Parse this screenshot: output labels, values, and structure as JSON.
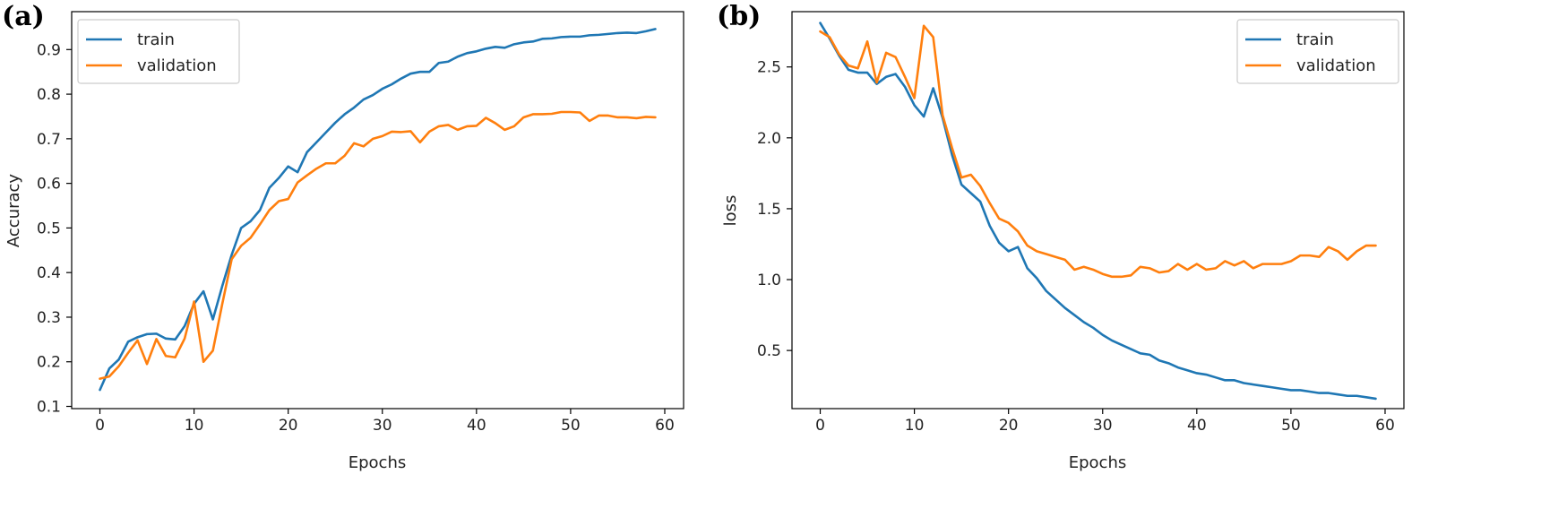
{
  "colors": {
    "train": "#1f77b4",
    "validation": "#ff7f0e"
  },
  "chart_data": [
    {
      "panel_label": "(a)",
      "type": "line",
      "xlabel": "Epochs",
      "ylabel": "Accuracy",
      "xlim": [
        -3,
        62
      ],
      "ylim": [
        0.095,
        0.985
      ],
      "xticks": [
        0,
        10,
        20,
        30,
        40,
        50,
        60
      ],
      "xtick_labels": [
        "0",
        "10",
        "20",
        "30",
        "40",
        "50",
        "60"
      ],
      "yticks": [
        0.1,
        0.2,
        0.3,
        0.4,
        0.5,
        0.6,
        0.7,
        0.8,
        0.9
      ],
      "ytick_labels": [
        "0.1",
        "0.2",
        "0.3",
        "0.4",
        "0.5",
        "0.6",
        "0.7",
        "0.8",
        "0.9"
      ],
      "legend_position": "top-left",
      "grid": false,
      "series": [
        {
          "name": "train",
          "values": [
            0.137,
            0.185,
            0.205,
            0.245,
            0.255,
            0.262,
            0.263,
            0.252,
            0.25,
            0.28,
            0.33,
            0.358,
            0.295,
            0.37,
            0.44,
            0.5,
            0.515,
            0.54,
            0.59,
            0.612,
            0.638,
            0.625,
            0.67,
            0.692,
            0.714,
            0.736,
            0.755,
            0.77,
            0.788,
            0.798,
            0.812,
            0.822,
            0.835,
            0.846,
            0.85,
            0.85,
            0.87,
            0.873,
            0.884,
            0.892,
            0.896,
            0.902,
            0.906,
            0.904,
            0.912,
            0.916,
            0.918,
            0.924,
            0.925,
            0.928,
            0.929,
            0.929,
            0.932,
            0.933,
            0.935,
            0.937,
            0.938,
            0.937,
            0.941,
            0.946
          ]
        },
        {
          "name": "validation",
          "values": [
            0.162,
            0.167,
            0.19,
            0.22,
            0.248,
            0.195,
            0.251,
            0.213,
            0.21,
            0.252,
            0.335,
            0.2,
            0.225,
            0.33,
            0.43,
            0.46,
            0.478,
            0.508,
            0.54,
            0.56,
            0.565,
            0.602,
            0.618,
            0.633,
            0.645,
            0.645,
            0.662,
            0.69,
            0.683,
            0.7,
            0.706,
            0.716,
            0.715,
            0.717,
            0.692,
            0.716,
            0.728,
            0.731,
            0.72,
            0.728,
            0.729,
            0.747,
            0.735,
            0.72,
            0.728,
            0.748,
            0.755,
            0.755,
            0.756,
            0.76,
            0.76,
            0.759,
            0.74,
            0.752,
            0.752,
            0.748,
            0.748,
            0.746,
            0.749,
            0.748
          ]
        }
      ]
    },
    {
      "panel_label": "(b)",
      "type": "line",
      "xlabel": "Epochs",
      "ylabel": "loss",
      "xlim": [
        -3,
        62
      ],
      "ylim": [
        0.09,
        2.89
      ],
      "xticks": [
        0,
        10,
        20,
        30,
        40,
        50,
        60
      ],
      "xtick_labels": [
        "0",
        "10",
        "20",
        "30",
        "40",
        "50",
        "60"
      ],
      "yticks": [
        0.5,
        1.0,
        1.5,
        2.0,
        2.5
      ],
      "ytick_labels": [
        "0.5",
        "1.0",
        "1.5",
        "2.0",
        "2.5"
      ],
      "legend_position": "top-right",
      "grid": false,
      "series": [
        {
          "name": "train",
          "values": [
            2.81,
            2.7,
            2.58,
            2.48,
            2.46,
            2.46,
            2.38,
            2.43,
            2.45,
            2.36,
            2.23,
            2.15,
            2.35,
            2.14,
            1.88,
            1.67,
            1.61,
            1.55,
            1.38,
            1.26,
            1.2,
            1.23,
            1.08,
            1.01,
            0.92,
            0.86,
            0.8,
            0.75,
            0.7,
            0.66,
            0.61,
            0.57,
            0.54,
            0.51,
            0.48,
            0.47,
            0.43,
            0.41,
            0.38,
            0.36,
            0.34,
            0.33,
            0.31,
            0.29,
            0.29,
            0.27,
            0.26,
            0.25,
            0.24,
            0.23,
            0.22,
            0.22,
            0.21,
            0.2,
            0.2,
            0.19,
            0.18,
            0.18,
            0.17,
            0.16
          ]
        },
        {
          "name": "validation",
          "values": [
            2.75,
            2.71,
            2.59,
            2.51,
            2.49,
            2.68,
            2.39,
            2.6,
            2.57,
            2.43,
            2.28,
            2.79,
            2.71,
            2.16,
            1.93,
            1.72,
            1.74,
            1.66,
            1.54,
            1.43,
            1.4,
            1.34,
            1.24,
            1.2,
            1.18,
            1.16,
            1.14,
            1.07,
            1.09,
            1.07,
            1.04,
            1.02,
            1.02,
            1.03,
            1.09,
            1.08,
            1.05,
            1.06,
            1.11,
            1.07,
            1.11,
            1.07,
            1.08,
            1.13,
            1.1,
            1.13,
            1.08,
            1.11,
            1.11,
            1.11,
            1.13,
            1.17,
            1.17,
            1.16,
            1.23,
            1.2,
            1.14,
            1.2,
            1.24,
            1.24
          ]
        }
      ]
    }
  ]
}
